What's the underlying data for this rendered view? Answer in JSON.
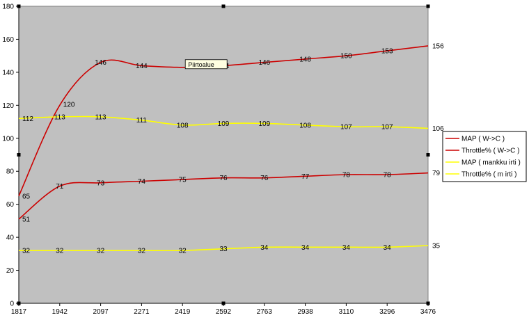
{
  "chart_data": {
    "type": "line",
    "categories": [
      "1817",
      "1942",
      "2097",
      "2271",
      "2419",
      "2592",
      "2763",
      "2938",
      "3110",
      "3296",
      "3476"
    ],
    "ylim": [
      0,
      180
    ],
    "yticks": [
      0,
      20,
      40,
      60,
      80,
      100,
      120,
      140,
      160,
      180
    ],
    "grid": false,
    "plot_background": "#c0c0c0",
    "legend_position": "right",
    "series": [
      {
        "name": "MAP ( W->C )",
        "color": "#cc0000",
        "values": [
          65,
          120,
          146,
          144,
          143,
          144,
          146,
          148,
          150,
          153,
          156
        ],
        "labels": [
          "65",
          "120",
          "146",
          "144",
          "",
          "144",
          "146",
          "148",
          "150",
          "153",
          "156"
        ]
      },
      {
        "name": "Throttle% ( W->C )",
        "color": "#cc0000",
        "values": [
          51,
          71,
          73,
          74,
          75,
          76,
          76,
          77,
          78,
          78,
          79
        ],
        "labels": [
          "51",
          "71",
          "73",
          "74",
          "75",
          "76",
          "76",
          "77",
          "78",
          "78",
          "79"
        ]
      },
      {
        "name": "MAP ( mankku irti )",
        "color": "#ffff00",
        "values": [
          112,
          113,
          113,
          111,
          108,
          109,
          109,
          108,
          107,
          107,
          106
        ],
        "labels": [
          "112",
          "113",
          "113",
          "111",
          "108",
          "109",
          "109",
          "108",
          "107",
          "107",
          "106"
        ]
      },
      {
        "name": "Throttle% ( m irti )",
        "color": "#ffff00",
        "values": [
          32,
          32,
          32,
          32,
          32,
          33,
          34,
          34,
          34,
          34,
          35
        ],
        "labels": [
          "32",
          "32",
          "32",
          "32",
          "32",
          "33",
          "34",
          "34",
          "34",
          "34",
          "35"
        ]
      }
    ],
    "annotations": [
      {
        "text": "Piirtoalue",
        "x": "2419",
        "y": 143
      }
    ]
  }
}
